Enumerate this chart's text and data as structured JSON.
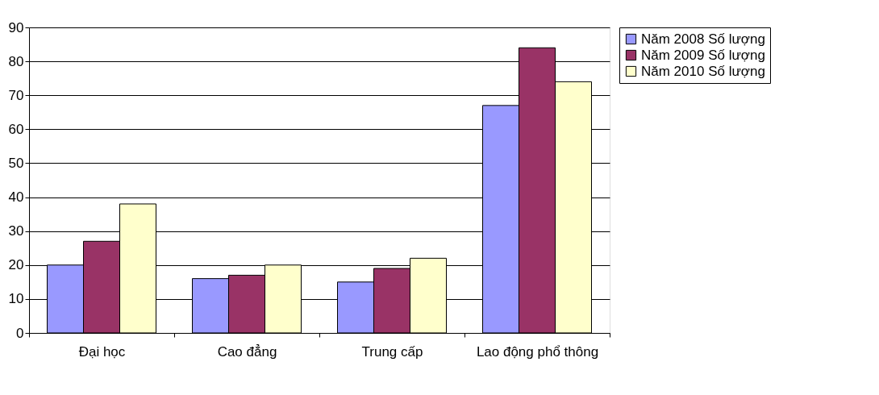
{
  "chart_data": {
    "type": "bar",
    "categories": [
      "Đại học",
      "Cao đẳng",
      "Trung cấp",
      "Lao động phổ thông"
    ],
    "series": [
      {
        "name": "Năm 2008 Số lượng",
        "color": "#9999ff",
        "values": [
          20,
          16,
          15,
          67
        ]
      },
      {
        "name": "Năm 2009 Số lượng",
        "color": "#993366",
        "values": [
          27,
          17,
          19,
          84
        ]
      },
      {
        "name": "Năm 2010 Số lượng",
        "color": "#ffffcc",
        "values": [
          38,
          20,
          22,
          74
        ]
      }
    ],
    "ylim": [
      0,
      90
    ],
    "yticks": [
      0,
      10,
      20,
      30,
      40,
      50,
      60,
      70,
      80,
      90
    ],
    "grid": "y",
    "legend": "right"
  }
}
